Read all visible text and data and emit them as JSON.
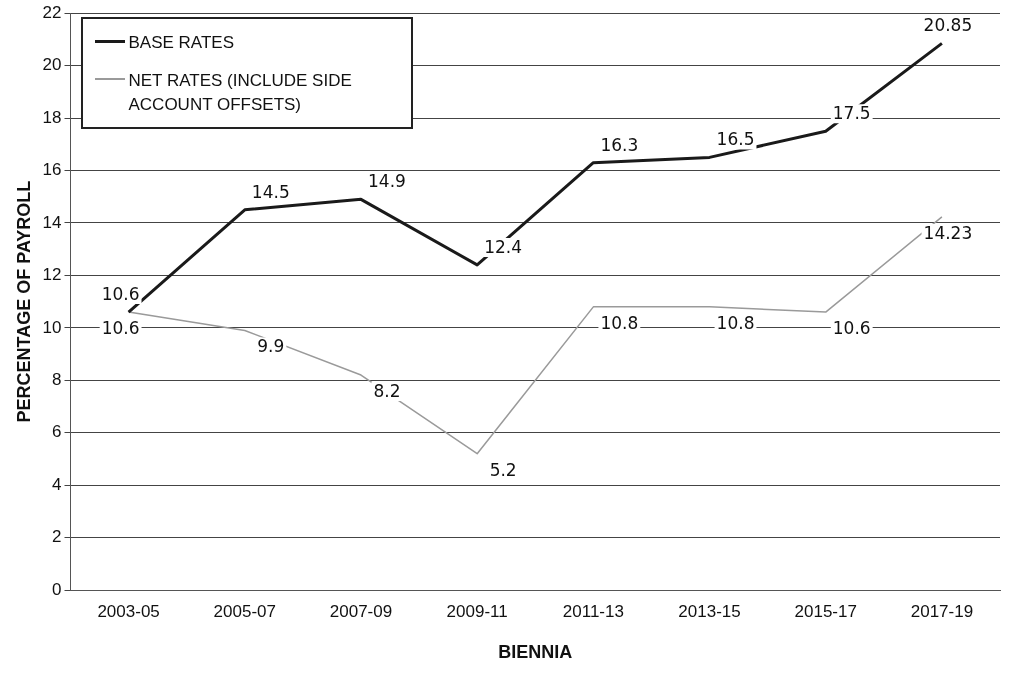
{
  "chart_data": {
    "type": "line",
    "xlabel": "BIENNIA",
    "ylabel": "PERCENTAGE OF PAYROLL",
    "categories": [
      "2003-05",
      "2005-07",
      "2007-09",
      "2009-11",
      "2011-13",
      "2013-15",
      "2015-17",
      "2017-19"
    ],
    "series": [
      {
        "name": "BASE RATES",
        "color": "#1a1a1a",
        "values": [
          10.6,
          14.5,
          14.9,
          12.4,
          16.3,
          16.5,
          17.5,
          20.85
        ]
      },
      {
        "name": "NET RATES (INCLUDE SIDE ACCOUNT OFFSETS)",
        "color": "#9a9a9a",
        "values": [
          10.6,
          9.9,
          8.2,
          5.2,
          10.8,
          10.8,
          10.6,
          14.23
        ]
      }
    ],
    "ylim": [
      0,
      22
    ],
    "yticks": [
      0,
      2,
      4,
      6,
      8,
      10,
      12,
      14,
      16,
      18,
      20,
      22
    ],
    "grid": "y",
    "legend": "top left",
    "marker": "none",
    "line_style": "solid",
    "data_labels": true
  }
}
